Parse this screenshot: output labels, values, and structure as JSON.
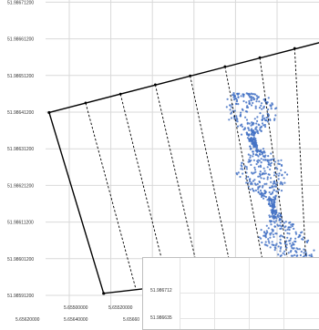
{
  "chart_data": {
    "type": "scatter",
    "title": "",
    "xlabel": "",
    "ylabel": "",
    "xlim": [
      5.65592,
      5.65668
    ],
    "ylim": [
      51.985868,
      51.986722
    ],
    "grid": true,
    "y_ticks": [
      "51.98591200",
      "51.98601200",
      "51.98611200",
      "51.98621200",
      "51.98631200",
      "51.98641200",
      "51.98651200",
      "51.98661200",
      "51.98671200"
    ],
    "x_ticks_upper": [
      "5.65500000",
      "5.65520000"
    ],
    "x_ticks_lower": [
      "5.65620000",
      "5.65640000",
      "5.65660"
    ],
    "colors": {
      "points": "#4472c4",
      "lines": "#000000",
      "grid": "#d9d9d9"
    },
    "boundary": [
      {
        "x": 5.656037,
        "y": 51.986422
      },
      {
        "x": 5.656685,
        "y": 51.986627
      },
      {
        "x": 5.656686,
        "y": 51.985968
      },
      {
        "x": 5.656167,
        "y": 51.985895
      },
      {
        "x": 5.656037,
        "y": 51.986422
      }
    ],
    "dividers": [
      {
        "x1": 5.656124,
        "y1": 51.98645,
        "x2": 5.656244,
        "y2": 51.985906
      },
      {
        "x1": 5.656207,
        "y1": 51.986476,
        "x2": 5.656321,
        "y2": 51.985917
      },
      {
        "x1": 5.65629,
        "y1": 51.986503,
        "x2": 5.656398,
        "y2": 51.985928
      },
      {
        "x1": 5.656373,
        "y1": 51.986529,
        "x2": 5.656475,
        "y2": 51.985939
      },
      {
        "x1": 5.656456,
        "y1": 51.986556,
        "x2": 5.656552,
        "y2": 51.98595
      },
      {
        "x1": 5.656539,
        "y1": 51.986582,
        "x2": 5.656609,
        "y2": 51.985958
      },
      {
        "x1": 5.656622,
        "y1": 51.986609,
        "x2": 5.65665,
        "y2": 51.985963
      }
    ],
    "track": [
      [
        5.656491,
        51.986479
      ],
      [
        5.656508,
        51.986466
      ],
      [
        5.656517,
        51.986449
      ],
      [
        5.656526,
        51.986427
      ],
      [
        5.656522,
        51.986402
      ],
      [
        5.656526,
        51.98638
      ],
      [
        5.656517,
        51.986361
      ],
      [
        5.656522,
        51.98634
      ],
      [
        5.65653,
        51.986322
      ],
      [
        5.656539,
        51.986302
      ],
      [
        5.656543,
        51.98628
      ],
      [
        5.656539,
        51.986258
      ],
      [
        5.656547,
        51.986236
      ],
      [
        5.656552,
        51.986214
      ],
      [
        5.656556,
        51.986193
      ],
      [
        5.656565,
        51.98617
      ],
      [
        5.656569,
        51.986149
      ],
      [
        5.656574,
        51.986127
      ],
      [
        5.656582,
        51.986105
      ],
      [
        5.656591,
        51.986083
      ],
      [
        5.656595,
        51.986061
      ],
      [
        5.656604,
        51.986039
      ],
      [
        5.656617,
        51.986017
      ],
      [
        5.65663,
        51.985995
      ],
      [
        5.656643,
        51.985975
      ],
      [
        5.656656,
        51.985956
      ],
      [
        5.656669,
        51.985944
      ]
    ]
  },
  "inset": {
    "y_ticks": [
      "51.986712",
      "51.986635"
    ]
  }
}
